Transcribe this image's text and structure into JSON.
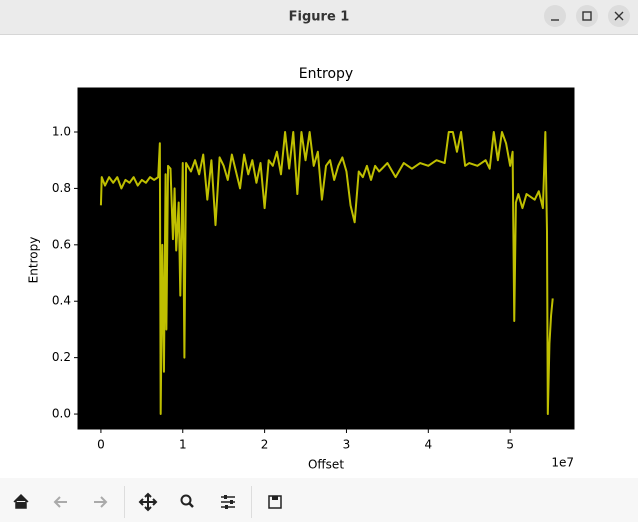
{
  "window": {
    "title": "Figure 1"
  },
  "chart_data": {
    "type": "line",
    "title": "Entropy",
    "x_label": "Offset",
    "y_label": "Entropy",
    "x_offset_label": "1e7",
    "background": "#000000",
    "grid": false,
    "series": [
      {
        "name": "Entropy",
        "color": "#bfbf00",
        "x": [
          0.0,
          0.01,
          0.05,
          0.1,
          0.15,
          0.2,
          0.25,
          0.3,
          0.35,
          0.4,
          0.45,
          0.5,
          0.55,
          0.6,
          0.65,
          0.7,
          0.72,
          0.73,
          0.75,
          0.77,
          0.79,
          0.8,
          0.82,
          0.85,
          0.88,
          0.9,
          0.92,
          0.95,
          0.97,
          1.0,
          1.02,
          1.04,
          1.1,
          1.15,
          1.2,
          1.25,
          1.3,
          1.35,
          1.4,
          1.45,
          1.5,
          1.55,
          1.6,
          1.65,
          1.7,
          1.75,
          1.8,
          1.85,
          1.9,
          1.95,
          2.0,
          2.05,
          2.1,
          2.15,
          2.2,
          2.25,
          2.3,
          2.35,
          2.4,
          2.45,
          2.5,
          2.55,
          2.6,
          2.65,
          2.7,
          2.75,
          2.8,
          2.85,
          2.9,
          2.95,
          3.0,
          3.05,
          3.1,
          3.15,
          3.2,
          3.25,
          3.3,
          3.35,
          3.4,
          3.5,
          3.6,
          3.7,
          3.8,
          3.9,
          4.0,
          4.1,
          4.2,
          4.25,
          4.3,
          4.35,
          4.4,
          4.45,
          4.5,
          4.6,
          4.7,
          4.75,
          4.8,
          4.85,
          4.9,
          4.95,
          5.0,
          5.03,
          5.05,
          5.07,
          5.1,
          5.15,
          5.2,
          5.3,
          5.35,
          5.4,
          5.43,
          5.45,
          5.46,
          5.48,
          5.5,
          5.52
        ],
        "values": [
          0.74,
          0.84,
          0.81,
          0.84,
          0.82,
          0.84,
          0.8,
          0.83,
          0.82,
          0.84,
          0.81,
          0.83,
          0.82,
          0.84,
          0.83,
          0.84,
          0.96,
          0.0,
          0.6,
          0.15,
          0.85,
          0.3,
          0.88,
          0.87,
          0.62,
          0.8,
          0.58,
          0.75,
          0.42,
          0.89,
          0.2,
          0.89,
          0.86,
          0.9,
          0.85,
          0.92,
          0.76,
          0.9,
          0.67,
          0.91,
          0.88,
          0.83,
          0.92,
          0.86,
          0.8,
          0.92,
          0.85,
          0.9,
          0.82,
          0.89,
          0.73,
          0.9,
          0.88,
          0.93,
          0.85,
          1.0,
          0.87,
          1.0,
          0.78,
          1.0,
          0.9,
          1.0,
          0.88,
          0.93,
          0.76,
          0.88,
          0.9,
          0.83,
          0.88,
          0.91,
          0.86,
          0.74,
          0.68,
          0.86,
          0.84,
          0.88,
          0.83,
          0.88,
          0.86,
          0.89,
          0.84,
          0.89,
          0.87,
          0.89,
          0.88,
          0.9,
          0.89,
          1.0,
          1.0,
          0.93,
          1.0,
          0.88,
          0.89,
          0.88,
          0.9,
          0.87,
          1.0,
          0.9,
          1.0,
          0.96,
          0.88,
          0.93,
          0.33,
          0.75,
          0.78,
          0.73,
          0.78,
          0.76,
          0.79,
          0.73,
          1.0,
          0.65,
          0.0,
          0.25,
          0.35,
          0.41
        ]
      }
    ],
    "xlim": [
      -0.28,
      5.78
    ],
    "xticks": [
      0,
      1,
      2,
      3,
      4,
      5
    ],
    "ylim": [
      -0.053,
      1.156
    ],
    "yticks": [
      {
        "value": 0,
        "label": "0.0"
      },
      0.2,
      0.4,
      0.6,
      0.8,
      {
        "value": 1,
        "label": "1.0"
      }
    ]
  }
}
